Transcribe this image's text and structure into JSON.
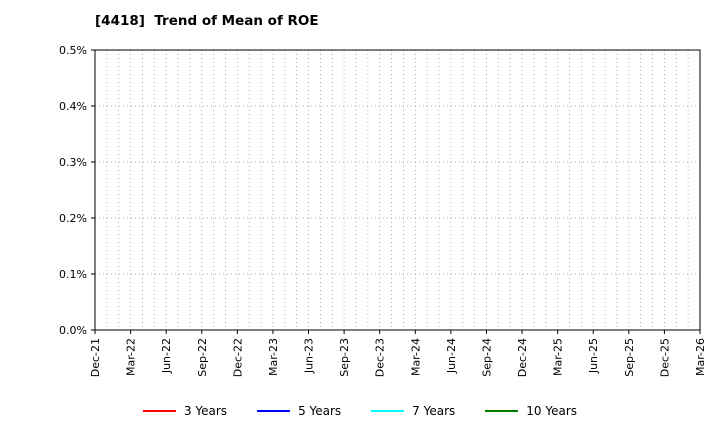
{
  "chart_data": {
    "type": "line",
    "title": "[4418]  Trend of Mean of ROE",
    "xlabel": "",
    "ylabel": "",
    "ylim": [
      0.0,
      0.5
    ],
    "y_tick_labels": [
      "0.0%",
      "0.1%",
      "0.2%",
      "0.3%",
      "0.4%",
      "0.5%"
    ],
    "x_tick_labels": [
      "Dec-21",
      "Mar-22",
      "Jun-22",
      "Sep-22",
      "Dec-22",
      "Mar-23",
      "Jun-23",
      "Sep-23",
      "Dec-23",
      "Mar-24",
      "Jun-24",
      "Sep-24",
      "Dec-24",
      "Mar-25",
      "Jun-25",
      "Sep-25",
      "Dec-25",
      "Mar-26"
    ],
    "grid": true,
    "legend_position": "bottom",
    "series": [
      {
        "name": "3 Years",
        "color": "#ff0000",
        "values": []
      },
      {
        "name": "5 Years",
        "color": "#0000ff",
        "values": []
      },
      {
        "name": "7 Years",
        "color": "#00ffff",
        "values": []
      },
      {
        "name": "10 Years",
        "color": "#008000",
        "values": []
      }
    ]
  }
}
